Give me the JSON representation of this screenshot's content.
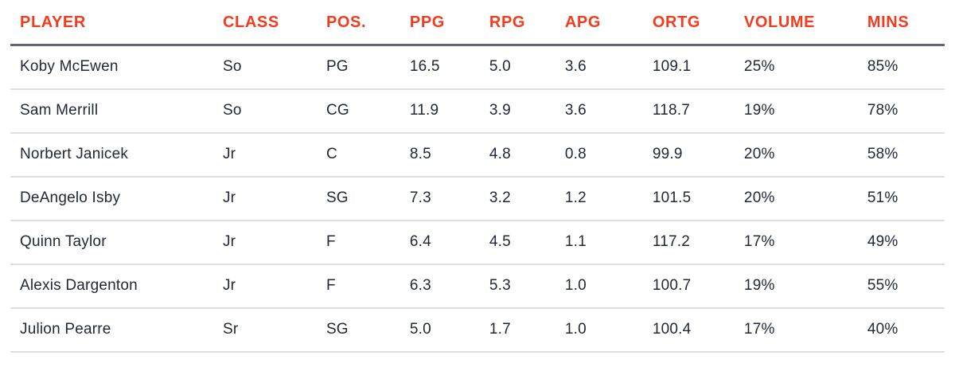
{
  "colors": {
    "header_text": "#f33b1e",
    "body_text": "#212836",
    "header_divider": "#63666b",
    "row_divider": "#e0e0e0",
    "background": "#ffffff"
  },
  "chart_data": {
    "type": "table",
    "title": "",
    "columns": [
      {
        "key": "player",
        "label": "PLAYER"
      },
      {
        "key": "class",
        "label": "CLASS"
      },
      {
        "key": "pos",
        "label": "POS."
      },
      {
        "key": "ppg",
        "label": "PPG"
      },
      {
        "key": "rpg",
        "label": "RPG"
      },
      {
        "key": "apg",
        "label": "APG"
      },
      {
        "key": "ortg",
        "label": "ORTG"
      },
      {
        "key": "volume",
        "label": "VOLUME"
      },
      {
        "key": "mins",
        "label": "MINS"
      }
    ],
    "rows": [
      [
        "Koby McEwen",
        "So",
        "PG",
        "16.5",
        "5.0",
        "3.6",
        "109.1",
        "25%",
        "85%"
      ],
      [
        "Sam Merrill",
        "So",
        "CG",
        "11.9",
        "3.9",
        "3.6",
        "118.7",
        "19%",
        "78%"
      ],
      [
        "Norbert Janicek",
        "Jr",
        "C",
        "8.5",
        "4.8",
        "0.8",
        "99.9",
        "20%",
        "58%"
      ],
      [
        "DeAngelo Isby",
        "Jr",
        "SG",
        "7.3",
        "3.2",
        "1.2",
        "101.5",
        "20%",
        "51%"
      ],
      [
        "Quinn Taylor",
        "Jr",
        "F",
        "6.4",
        "4.5",
        "1.1",
        "117.2",
        "17%",
        "49%"
      ],
      [
        "Alexis Dargenton",
        "Jr",
        "F",
        "6.3",
        "5.3",
        "1.0",
        "100.7",
        "19%",
        "55%"
      ],
      [
        "Julion Pearre",
        "Sr",
        "SG",
        "5.0",
        "1.7",
        "1.0",
        "100.4",
        "17%",
        "40%"
      ]
    ]
  }
}
